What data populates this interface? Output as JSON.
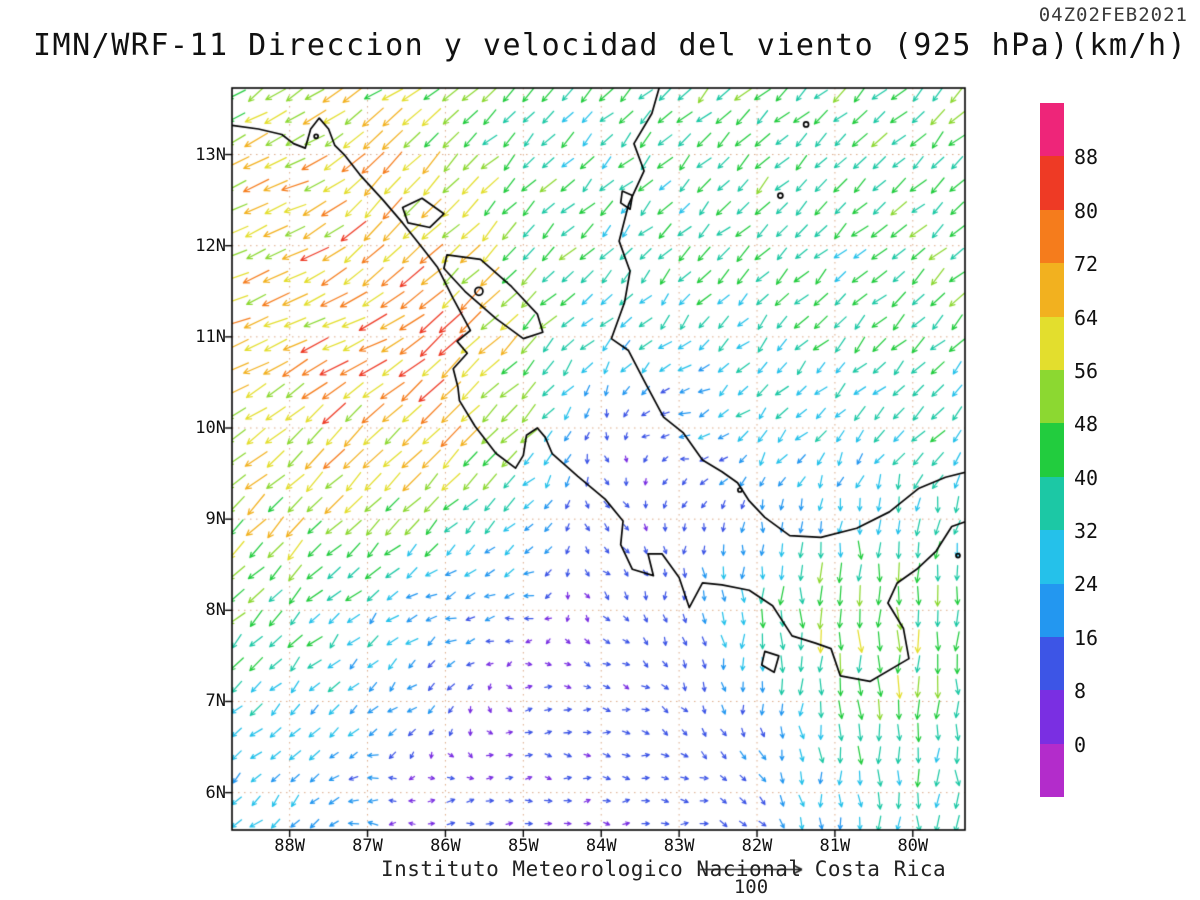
{
  "chart_data": {
    "type": "vector",
    "title": "IMN/WRF-11 Direccion y velocidad del viento (925 hPa)(km/h)",
    "date_label": "04Z02FEB2021",
    "credit": "Instituto Meteorologico Nacional Costa Rica",
    "units": "km/h",
    "level": "925 hPa",
    "reference_vector": {
      "value": 100,
      "label": "100"
    },
    "lon_range": [
      -88.74,
      -79.33
    ],
    "lat_range": [
      5.59,
      13.73
    ],
    "lat_ticks": [
      {
        "value": 13,
        "label": "13N"
      },
      {
        "value": 12,
        "label": "12N"
      },
      {
        "value": 11,
        "label": "11N"
      },
      {
        "value": 10,
        "label": "10N"
      },
      {
        "value": 9,
        "label": "9N"
      },
      {
        "value": 8,
        "label": "8N"
      },
      {
        "value": 7,
        "label": "7N"
      },
      {
        "value": 6,
        "label": "6N"
      }
    ],
    "lon_ticks": [
      {
        "value": -88,
        "label": "88W"
      },
      {
        "value": -87,
        "label": "87W"
      },
      {
        "value": -86,
        "label": "86W"
      },
      {
        "value": -85,
        "label": "85W"
      },
      {
        "value": -84,
        "label": "84W"
      },
      {
        "value": -83,
        "label": "83W"
      },
      {
        "value": -82,
        "label": "82W"
      },
      {
        "value": -81,
        "label": "81W"
      },
      {
        "value": -80,
        "label": "80W"
      }
    ],
    "colorbar": {
      "levels": [
        0,
        8,
        16,
        24,
        32,
        40,
        48,
        56,
        64,
        72,
        80,
        88
      ],
      "colors": [
        "#b32ccb",
        "#7a2fe2",
        "#3d55e6",
        "#2397f0",
        "#25c1ea",
        "#1cc8a5",
        "#22cc3e",
        "#8cd831",
        "#e3de2d",
        "#f2b11f",
        "#f57c1c",
        "#ee3a25",
        "#ee2579"
      ]
    },
    "wind_grid": {
      "comment_units": "u,v components km/h on 1-degree grid, estimated from arrow colors/directions",
      "lons": [
        -89,
        -88,
        -87,
        -86,
        -85,
        -84,
        -83,
        -82,
        -81,
        -80,
        -79
      ],
      "lats": [
        14,
        13,
        12,
        11,
        10,
        9,
        8,
        7,
        6
      ],
      "u": [
        [
          -32,
          -35,
          -51,
          -32,
          -25,
          -28,
          -28,
          -30,
          -30,
          -30,
          -30
        ],
        [
          -51,
          -55,
          -46,
          -39,
          -28,
          -25,
          -27,
          -28,
          -28,
          -28,
          -28
        ],
        [
          -55,
          -60,
          -49,
          -42,
          -32,
          -25,
          -25,
          -27,
          -27,
          -28,
          -30
        ],
        [
          -55,
          -63,
          -67,
          -55,
          -35,
          -21,
          -20,
          -23,
          -25,
          -27,
          -28
        ],
        [
          -54,
          -44,
          -47,
          -49,
          -32,
          4,
          -20,
          -20,
          -21,
          -25,
          -27
        ],
        [
          -37,
          -39,
          -35,
          -28,
          -18,
          8,
          0,
          0,
          0,
          0,
          -13
        ],
        [
          -32,
          -28,
          -21,
          -20,
          -15,
          8,
          0,
          0,
          0,
          0,
          0
        ],
        [
          -25,
          -21,
          -16,
          -11,
          10,
          10,
          8,
          0,
          0,
          0,
          0
        ],
        [
          -20,
          -17,
          -18,
          12,
          8,
          8,
          10,
          11,
          0,
          0,
          0
        ]
      ],
      "v": [
        [
          -32,
          -35,
          -21,
          -32,
          -25,
          -28,
          -28,
          -30,
          -30,
          -30,
          -30
        ],
        [
          -21,
          -23,
          -46,
          -39,
          -28,
          -25,
          -27,
          -28,
          -28,
          -28,
          -28
        ],
        [
          -23,
          -25,
          -49,
          -42,
          -32,
          -25,
          -25,
          -27,
          -27,
          -28,
          -30
        ],
        [
          -23,
          -26,
          -28,
          -55,
          -35,
          -21,
          -20,
          -23,
          -25,
          -27,
          -28
        ],
        [
          -22,
          -44,
          -47,
          -49,
          -32,
          -11,
          0,
          -20,
          -21,
          -25,
          -27
        ],
        [
          -37,
          -39,
          -35,
          -28,
          -18,
          -8,
          -10,
          -15,
          -25,
          -30,
          -32
        ],
        [
          -32,
          -28,
          -21,
          -8,
          0,
          -8,
          -12,
          -35,
          -55,
          -45,
          -40
        ],
        [
          -25,
          -21,
          -16,
          -11,
          0,
          0,
          -8,
          -20,
          -40,
          -50,
          -35
        ],
        [
          -20,
          -17,
          0,
          0,
          0,
          0,
          0,
          -11,
          -25,
          -35,
          -30
        ]
      ]
    },
    "coastlines": [
      {
        "name": "pacific-coast",
        "closed": false,
        "points": [
          [
            -88.74,
            13.32
          ],
          [
            -88.4,
            13.28
          ],
          [
            -88.1,
            13.22
          ],
          [
            -87.95,
            13.12
          ],
          [
            -87.8,
            13.07
          ],
          [
            -87.73,
            13.28
          ],
          [
            -87.62,
            13.4
          ],
          [
            -87.5,
            13.28
          ],
          [
            -87.42,
            13.1
          ],
          [
            -87.3,
            13.0
          ],
          [
            -87.1,
            12.78
          ],
          [
            -86.8,
            12.5
          ],
          [
            -86.55,
            12.25
          ],
          [
            -86.3,
            11.98
          ],
          [
            -86.1,
            11.76
          ],
          [
            -85.9,
            11.42
          ],
          [
            -85.68,
            11.07
          ],
          [
            -85.85,
            10.95
          ],
          [
            -85.72,
            10.82
          ],
          [
            -85.9,
            10.65
          ],
          [
            -85.84,
            10.45
          ],
          [
            -85.82,
            10.3
          ],
          [
            -85.62,
            10.02
          ],
          [
            -85.35,
            9.72
          ],
          [
            -85.1,
            9.56
          ],
          [
            -85.0,
            9.7
          ],
          [
            -84.96,
            9.92
          ],
          [
            -84.82,
            10.0
          ],
          [
            -84.72,
            9.9
          ],
          [
            -84.63,
            9.72
          ],
          [
            -84.3,
            9.47
          ],
          [
            -83.95,
            9.22
          ],
          [
            -83.72,
            8.98
          ],
          [
            -83.75,
            8.72
          ],
          [
            -83.6,
            8.45
          ],
          [
            -83.33,
            8.38
          ],
          [
            -83.4,
            8.62
          ],
          [
            -83.22,
            8.62
          ],
          [
            -83.0,
            8.36
          ],
          [
            -82.87,
            8.03
          ],
          [
            -82.7,
            8.3
          ],
          [
            -82.45,
            8.28
          ],
          [
            -82.1,
            8.22
          ],
          [
            -81.8,
            8.05
          ],
          [
            -81.55,
            7.72
          ],
          [
            -81.25,
            7.64
          ],
          [
            -81.05,
            7.58
          ],
          [
            -80.93,
            7.28
          ],
          [
            -80.55,
            7.22
          ],
          [
            -80.05,
            7.47
          ],
          [
            -80.12,
            7.8
          ],
          [
            -80.32,
            8.08
          ],
          [
            -80.2,
            8.3
          ],
          [
            -79.95,
            8.45
          ],
          [
            -79.7,
            8.65
          ],
          [
            -79.5,
            8.92
          ],
          [
            -79.3,
            8.98
          ]
        ]
      },
      {
        "name": "caribbean-coast",
        "closed": false,
        "points": [
          [
            -83.25,
            13.75
          ],
          [
            -83.35,
            13.45
          ],
          [
            -83.58,
            13.12
          ],
          [
            -83.45,
            12.82
          ],
          [
            -83.65,
            12.45
          ],
          [
            -83.77,
            12.05
          ],
          [
            -83.63,
            11.72
          ],
          [
            -83.7,
            11.38
          ],
          [
            -83.87,
            10.98
          ],
          [
            -83.65,
            10.85
          ],
          [
            -83.45,
            10.52
          ],
          [
            -83.2,
            10.12
          ],
          [
            -82.95,
            9.95
          ],
          [
            -82.7,
            9.65
          ],
          [
            -82.45,
            9.52
          ],
          [
            -82.25,
            9.4
          ],
          [
            -82.1,
            9.2
          ],
          [
            -81.9,
            9.02
          ],
          [
            -81.58,
            8.82
          ],
          [
            -81.18,
            8.8
          ],
          [
            -80.72,
            8.9
          ],
          [
            -80.3,
            9.08
          ],
          [
            -79.92,
            9.34
          ],
          [
            -79.58,
            9.46
          ],
          [
            -79.3,
            9.52
          ]
        ]
      },
      {
        "name": "lake-nicaragua",
        "closed": true,
        "points": [
          [
            -85.98,
            11.9
          ],
          [
            -85.55,
            11.85
          ],
          [
            -85.15,
            11.55
          ],
          [
            -84.82,
            11.25
          ],
          [
            -84.75,
            11.05
          ],
          [
            -85.0,
            10.98
          ],
          [
            -85.35,
            11.2
          ],
          [
            -85.75,
            11.5
          ],
          [
            -86.02,
            11.75
          ]
        ]
      },
      {
        "name": "lake-managua",
        "closed": true,
        "points": [
          [
            -86.55,
            12.42
          ],
          [
            -86.3,
            12.52
          ],
          [
            -86.02,
            12.35
          ],
          [
            -86.2,
            12.2
          ],
          [
            -86.48,
            12.25
          ]
        ]
      },
      {
        "name": "pearl-lagoon",
        "closed": true,
        "points": [
          [
            -83.73,
            12.6
          ],
          [
            -83.6,
            12.55
          ],
          [
            -83.63,
            12.4
          ],
          [
            -83.75,
            12.47
          ]
        ]
      },
      {
        "name": "coiba-island",
        "closed": true,
        "points": [
          [
            -81.9,
            7.55
          ],
          [
            -81.72,
            7.5
          ],
          [
            -81.78,
            7.32
          ],
          [
            -81.94,
            7.4
          ]
        ]
      }
    ],
    "islands": [
      {
        "name": "ometepe",
        "lon": -85.57,
        "lat": 11.5,
        "r": 4
      },
      {
        "name": "san-andres",
        "lon": -81.7,
        "lat": 12.55,
        "r": 2.5
      },
      {
        "name": "providencia",
        "lon": -81.37,
        "lat": 13.33,
        "r": 2.5
      },
      {
        "name": "bocas-del-toro",
        "lon": -82.22,
        "lat": 9.32,
        "r": 2
      },
      {
        "name": "gulf-of-panama-island",
        "lon": -79.42,
        "lat": 8.6,
        "r": 2
      },
      {
        "name": "fonseca-island",
        "lon": -87.66,
        "lat": 13.2,
        "r": 2
      }
    ],
    "style": {
      "coast_color": "#000000",
      "grid_dot_color": "rgba(200,125,70,0.65)",
      "frame_color": "#000000"
    }
  }
}
